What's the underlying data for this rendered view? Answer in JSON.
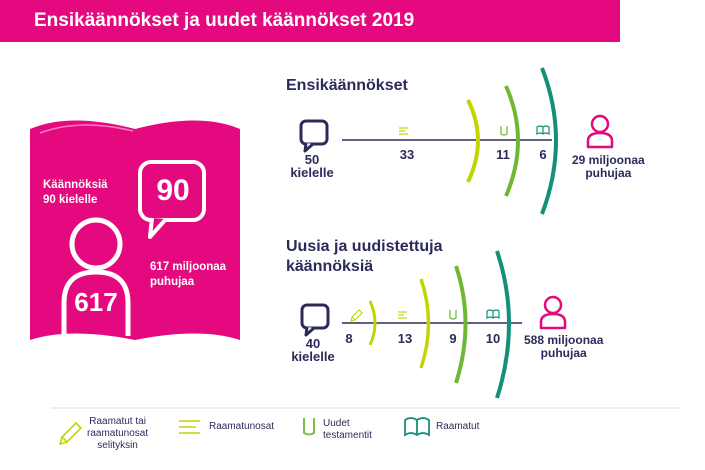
{
  "title": "Ensikäännökset ja uudet käännökset 2019",
  "colors": {
    "magenta": "#e5097f",
    "navy": "#2b2b5a",
    "light_green": "#c2d500",
    "green": "#6fb834",
    "teal": "#138f7c"
  },
  "book": {
    "caption": "Käännöksiä\n90 kielelle",
    "bubble_number": "90",
    "speakers_text": "617 miljoonaa\npuhujaa",
    "person_number": "617"
  },
  "first_translations": {
    "title": "Ensikäännökset",
    "languages_num": "50",
    "languages_label": "kielelle",
    "scripture_portions": "33",
    "new_testaments": "11",
    "bibles": "6",
    "speakers": "29 miljoonaa\npuhujaa"
  },
  "new_translations": {
    "title": "Uusia ja uudistettuja\nkäännöksiä",
    "languages_num": "40",
    "languages_label": "kielelle",
    "bible_stories": "8",
    "scripture_portions": "13",
    "new_testaments": "9",
    "bibles": "10",
    "speakers": "588 miljoonaa\npuhujaa"
  },
  "legend": {
    "pencil_icon": "pencil-icon",
    "item1": "Raamatut tai\nraamatunosat\nselityksin",
    "item2": "Raamatunosat",
    "item3": "Uudet\ntestamentit",
    "item4": "Raamatut"
  }
}
